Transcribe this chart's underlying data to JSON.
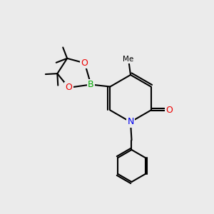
{
  "bg_color": "#ebebeb",
  "bond_color": "#000000",
  "bond_width": 1.5,
  "atom_colors": {
    "N": "#0000ee",
    "O": "#ee0000",
    "B": "#00aa00",
    "C": "#000000"
  },
  "font_size": 9,
  "font_size_small": 7.5
}
